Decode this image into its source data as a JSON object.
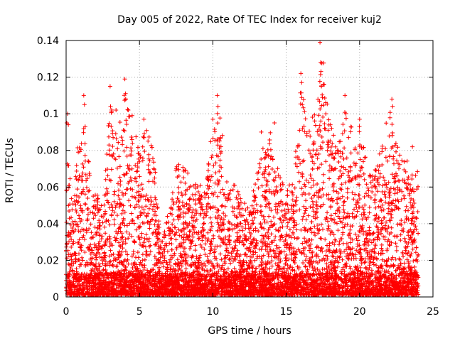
{
  "chart_data": {
    "type": "scatter",
    "title": "Day 005 of 2022, Rate Of TEC Index for receiver kuj2",
    "xlabel": "GPS time / hours",
    "ylabel": "ROTI / TECUs",
    "xlim": [
      0,
      25
    ],
    "ylim": [
      0,
      0.14
    ],
    "x_ticks": [
      0,
      5,
      10,
      15,
      20,
      25
    ],
    "x_tick_labels": [
      "0",
      "5",
      "10",
      "15",
      "20",
      "25"
    ],
    "y_ticks": [
      0,
      0.02,
      0.04,
      0.06,
      0.08,
      0.1,
      0.12,
      0.14
    ],
    "y_tick_labels": [
      "0",
      "0.02",
      "0.04",
      "0.06",
      "0.08",
      "0.1",
      "0.12",
      "0.14"
    ],
    "grid": true,
    "marker": "plus",
    "series_color": "#ff0000",
    "x_data_range": [
      0,
      24
    ],
    "envelope_hours": [
      0,
      0.5,
      1,
      1.5,
      2,
      2.5,
      3,
      3.5,
      4,
      4.5,
      5,
      5.5,
      6,
      6.5,
      7,
      7.5,
      8,
      8.5,
      9,
      9.5,
      10,
      10.5,
      11,
      11.5,
      12,
      12.5,
      13,
      13.5,
      14,
      14.5,
      15,
      15.5,
      16,
      16.5,
      17,
      17.5,
      18,
      18.5,
      19,
      19.5,
      20,
      20.5,
      21,
      21.5,
      22,
      22.5,
      23,
      23.5,
      24
    ],
    "envelope_roti_max": [
      0.1,
      0.05,
      0.11,
      0.08,
      0.06,
      0.05,
      0.115,
      0.09,
      0.119,
      0.1,
      0.085,
      0.097,
      0.08,
      0.03,
      0.05,
      0.077,
      0.075,
      0.07,
      0.065,
      0.06,
      0.1,
      0.11,
      0.06,
      0.065,
      0.055,
      0.05,
      0.07,
      0.09,
      0.095,
      0.07,
      0.06,
      0.07,
      0.122,
      0.1,
      0.115,
      0.139,
      0.1,
      0.09,
      0.11,
      0.095,
      0.1,
      0.08,
      0.07,
      0.087,
      0.108,
      0.09,
      0.085,
      0.072,
      0.075
    ],
    "sample_points": [
      [
        0.05,
        0.095
      ],
      [
        0.1,
        0.1
      ],
      [
        0.15,
        0.094
      ],
      [
        1.2,
        0.11
      ],
      [
        1.25,
        0.105
      ],
      [
        1.3,
        0.093
      ],
      [
        3.0,
        0.115
      ],
      [
        3.4,
        0.102
      ],
      [
        4.0,
        0.119
      ],
      [
        4.05,
        0.111
      ],
      [
        4.5,
        0.099
      ],
      [
        5.3,
        0.097
      ],
      [
        10.0,
        0.097
      ],
      [
        10.3,
        0.11
      ],
      [
        10.35,
        0.104
      ],
      [
        13.3,
        0.09
      ],
      [
        14.2,
        0.095
      ],
      [
        16.0,
        0.122
      ],
      [
        16.05,
        0.117
      ],
      [
        16.1,
        0.105
      ],
      [
        17.3,
        0.139
      ],
      [
        17.35,
        0.128
      ],
      [
        17.4,
        0.115
      ],
      [
        17.7,
        0.1
      ],
      [
        19.0,
        0.11
      ],
      [
        20.0,
        0.097
      ],
      [
        22.2,
        0.108
      ],
      [
        22.25,
        0.104
      ],
      [
        23.6,
        0.082
      ]
    ]
  }
}
